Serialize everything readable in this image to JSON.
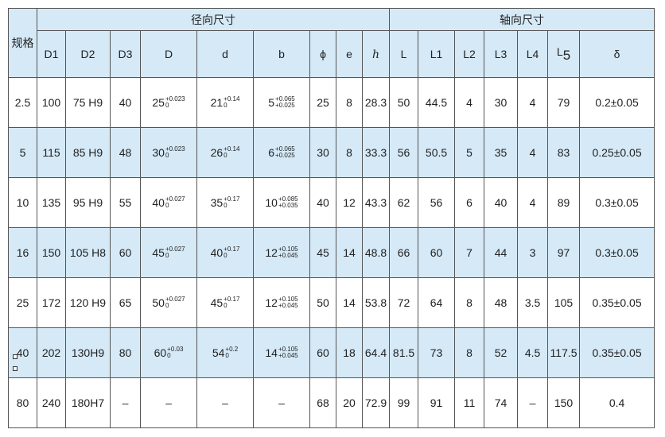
{
  "header": {
    "spec": "规格",
    "radial": "径向尺寸",
    "axial": "轴向尺寸",
    "columns": [
      "D1",
      "D2",
      "D3",
      "D",
      "d",
      "b",
      "ϕ",
      "e",
      "h",
      "L",
      "L1",
      "L2",
      "L3",
      "L4",
      "L",
      "δ"
    ],
    "l5_sub": "5"
  },
  "colors": {
    "header_bg": "#d5e9f7",
    "stripe_bg": "#d5e9f7",
    "border": "#555555"
  },
  "rows": [
    {
      "spec": "2.5",
      "D1": "100",
      "D2": "75 H9",
      "D3": "40",
      "D": {
        "base": "25",
        "upper": "+0.023",
        "lower": "0"
      },
      "d": {
        "base": "21",
        "upper": "+0.14",
        "lower": "0"
      },
      "b": {
        "base": "5",
        "upper": "+0.065",
        "lower": "+0.025"
      },
      "phi": "25",
      "e": "8",
      "h": "28.3",
      "L": "50",
      "L1": "44.5",
      "L2": "4",
      "L3": "30",
      "L4": "4",
      "L5": "79",
      "delta": "0.2±0.05"
    },
    {
      "spec": "5",
      "D1": "115",
      "D2": "85 H9",
      "D3": "48",
      "D": {
        "base": "30",
        "upper": "+0.023",
        "lower": "0"
      },
      "d": {
        "base": "26",
        "upper": "+0.14",
        "lower": "0"
      },
      "b": {
        "base": "6",
        "upper": "+0.065",
        "lower": "+0.025"
      },
      "phi": "30",
      "e": "8",
      "h": "33.3",
      "L": "56",
      "L1": "50.5",
      "L2": "5",
      "L3": "35",
      "L4": "4",
      "L5": "83",
      "delta": "0.25±0.05"
    },
    {
      "spec": "10",
      "D1": "135",
      "D2": "95 H9",
      "D3": "55",
      "D": {
        "base": "40",
        "upper": "+0.027",
        "lower": "0"
      },
      "d": {
        "base": "35",
        "upper": "+0.17",
        "lower": "0"
      },
      "b": {
        "base": "10",
        "upper": "+0.085",
        "lower": "+0.035"
      },
      "phi": "40",
      "e": "12",
      "h": "43.3",
      "L": "62",
      "L1": "56",
      "L2": "6",
      "L3": "40",
      "L4": "4",
      "L5": "89",
      "delta": "0.3±0.05"
    },
    {
      "spec": "16",
      "D1": "150",
      "D2": "105 H8",
      "D3": "60",
      "D": {
        "base": "45",
        "upper": "+0.027",
        "lower": "0"
      },
      "d": {
        "base": "40",
        "upper": "+0.17",
        "lower": "0"
      },
      "b": {
        "base": "12",
        "upper": "+0.105",
        "lower": "+0.045"
      },
      "phi": "45",
      "e": "14",
      "h": "48.8",
      "L": "66",
      "L1": "60",
      "L2": "7",
      "L3": "44",
      "L4": "3",
      "L5": "97",
      "delta": "0.3±0.05"
    },
    {
      "spec": "25",
      "D1": "172",
      "D2": "120 H9",
      "D3": "65",
      "D": {
        "base": "50",
        "upper": "+0.027",
        "lower": "0"
      },
      "d": {
        "base": "45",
        "upper": "+0.17",
        "lower": "0"
      },
      "b": {
        "base": "12",
        "upper": "+0.105",
        "lower": "+0.045"
      },
      "phi": "50",
      "e": "14",
      "h": "53.8",
      "L": "72",
      "L1": "64",
      "L2": "8",
      "L3": "48",
      "L4": "3.5",
      "L5": "105",
      "delta": "0.35±0.05"
    },
    {
      "spec": "40",
      "D1": "202",
      "D2": "130H9",
      "D3": "80",
      "D": {
        "base": "60",
        "upper": "+0.03",
        "lower": "0"
      },
      "d": {
        "base": "54",
        "upper": "+0.2",
        "lower": "0"
      },
      "b": {
        "base": "14",
        "upper": "+0.105",
        "lower": "+0.045"
      },
      "phi": "60",
      "e": "18",
      "h": "64.4",
      "L": "81.5",
      "L1": "73",
      "L2": "8",
      "L3": "52",
      "L4": "4.5",
      "L5": "117.5",
      "delta": "0.35±0.05"
    },
    {
      "spec": "80",
      "D1": "240",
      "D2": "180H7",
      "D3": "–",
      "D": "–",
      "d": "–",
      "b": "–",
      "phi": "68",
      "e": "20",
      "h": "72.9",
      "L": "99",
      "L1": "91",
      "L2": "11",
      "L3": "74",
      "L4": "–",
      "L5": "150",
      "delta": "0.4"
    }
  ]
}
